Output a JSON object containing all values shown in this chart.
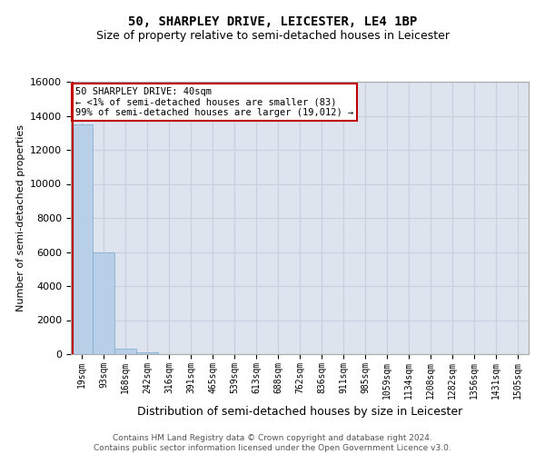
{
  "title": "50, SHARPLEY DRIVE, LEICESTER, LE4 1BP",
  "subtitle": "Size of property relative to semi-detached houses in Leicester",
  "xlabel": "Distribution of semi-detached houses by size in Leicester",
  "ylabel": "Number of semi-detached properties",
  "annotation_line1": "50 SHARPLEY DRIVE: 40sqm",
  "annotation_line2": "← <1% of semi-detached houses are smaller (83)",
  "annotation_line3": "99% of semi-detached houses are larger (19,012) →",
  "footer_line1": "Contains HM Land Registry data © Crown copyright and database right 2024.",
  "footer_line2": "Contains public sector information licensed under the Open Government Licence v3.0.",
  "categories": [
    "19sqm",
    "93sqm",
    "168sqm",
    "242sqm",
    "316sqm",
    "391sqm",
    "465sqm",
    "539sqm",
    "613sqm",
    "688sqm",
    "762sqm",
    "836sqm",
    "911sqm",
    "985sqm",
    "1059sqm",
    "1134sqm",
    "1208sqm",
    "1282sqm",
    "1356sqm",
    "1431sqm",
    "1505sqm"
  ],
  "values": [
    13500,
    6000,
    300,
    100,
    0,
    0,
    0,
    0,
    0,
    0,
    0,
    0,
    0,
    0,
    0,
    0,
    0,
    0,
    0,
    0,
    0
  ],
  "bar_color": "#b8cfe8",
  "bar_edge_color": "#7aa8d0",
  "highlight_color": "#c00000",
  "red_line_x": -0.42,
  "ylim": [
    0,
    16000
  ],
  "yticks": [
    0,
    2000,
    4000,
    6000,
    8000,
    10000,
    12000,
    14000,
    16000
  ],
  "grid_color": "#c8d0dc",
  "bg_color": "#dde4ee",
  "annotation_edge_color": "#c00000",
  "annotation_fontsize": 7.5,
  "title_fontsize": 10,
  "subtitle_fontsize": 9,
  "ylabel_fontsize": 8,
  "xlabel_fontsize": 9
}
